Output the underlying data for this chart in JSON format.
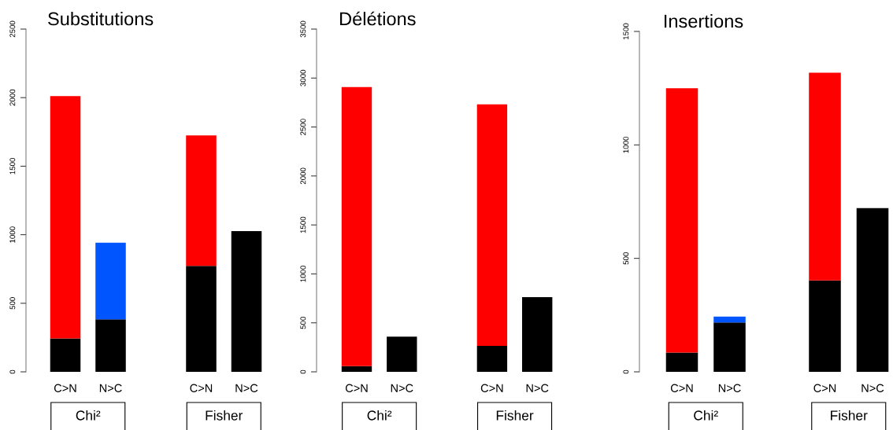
{
  "chart_data": [
    {
      "type": "bar",
      "stacked": true,
      "title": "Substitutions",
      "categories": [
        "C>N",
        "N>C",
        null,
        "C>N",
        "N>C"
      ],
      "series": [
        {
          "color": "#000000",
          "values": [
            244,
            383,
            null,
            773,
            1026
          ]
        },
        {
          "color": "#ff0000",
          "values": [
            1767,
            null,
            null,
            952,
            null
          ]
        },
        {
          "color": "#0055ff",
          "values": [
            null,
            559,
            null,
            null,
            null
          ]
        }
      ],
      "ylim": [
        0,
        2500
      ],
      "yticks": [
        0,
        500,
        1000,
        1500,
        2000,
        2500
      ],
      "annotations": [
        "Chi²",
        "Fisher"
      ]
    },
    {
      "type": "bar",
      "stacked": true,
      "title": "Délétions",
      "categories": [
        "C>N",
        "N>C",
        null,
        "C>N",
        "N>C"
      ],
      "series": [
        {
          "color": "#000000",
          "values": [
            59,
            359,
            null,
            264,
            763
          ]
        },
        {
          "color": "#ff0000",
          "values": [
            2849,
            null,
            null,
            2467,
            null
          ]
        }
      ],
      "ylim": [
        0,
        3500
      ],
      "yticks": [
        0,
        500,
        1000,
        1500,
        2000,
        2500,
        3000,
        3500
      ],
      "annotations": [
        "Chi²",
        "Fisher"
      ]
    },
    {
      "type": "bar",
      "stacked": true,
      "title": "Insertions",
      "categories": [
        "C>N",
        "N>C",
        null,
        "C>N",
        "N>C"
      ],
      "series": [
        {
          "color": "#000000",
          "values": [
            85,
            217,
            null,
            403,
            721
          ]
        },
        {
          "color": "#ff0000",
          "values": [
            1165,
            null,
            null,
            915,
            null
          ]
        },
        {
          "color": "#0055ff",
          "values": [
            null,
            26,
            null,
            null,
            null
          ]
        }
      ],
      "ylim": [
        0,
        1500
      ],
      "yticks": [
        0,
        500,
        1000,
        1500
      ],
      "annotations": [
        "Chi²",
        "Fisher"
      ]
    }
  ]
}
